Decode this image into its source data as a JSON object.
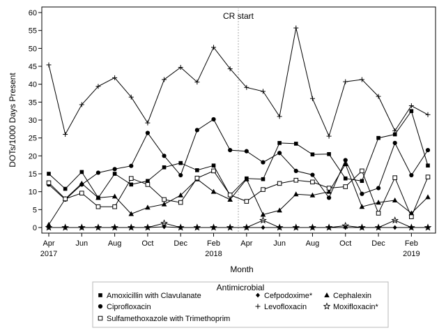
{
  "chart_data": {
    "type": "line",
    "xlabel": "Month",
    "ylabel": "DOTs/1000 Days Present",
    "ylim": [
      0,
      60
    ],
    "yticks": [
      0,
      5,
      10,
      15,
      20,
      25,
      30,
      35,
      40,
      45,
      50,
      55,
      60
    ],
    "grid": false,
    "legend_placement": "bottom",
    "x": [
      "2017-04",
      "2017-05",
      "2017-06",
      "2017-07",
      "2017-08",
      "2017-09",
      "2017-10",
      "2017-11",
      "2017-12",
      "2018-01",
      "2018-02",
      "2018-03",
      "2018-04",
      "2018-05",
      "2018-06",
      "2018-07",
      "2018-08",
      "2018-09",
      "2018-10",
      "2018-11",
      "2018-12",
      "2019-01",
      "2019-02",
      "2019-03"
    ],
    "xticks": [
      {
        "month": "2017-04",
        "label": "Apr",
        "year": "2017"
      },
      {
        "month": "2017-06",
        "label": "Jun",
        "year": ""
      },
      {
        "month": "2017-08",
        "label": "Aug",
        "year": ""
      },
      {
        "month": "2017-10",
        "label": "Oct",
        "year": ""
      },
      {
        "month": "2017-12",
        "label": "Dec",
        "year": ""
      },
      {
        "month": "2018-02",
        "label": "Feb",
        "year": "2018"
      },
      {
        "month": "2018-04",
        "label": "Apr",
        "year": ""
      },
      {
        "month": "2018-06",
        "label": "Jun",
        "year": ""
      },
      {
        "month": "2018-08",
        "label": "Aug",
        "year": ""
      },
      {
        "month": "2018-10",
        "label": "Oct",
        "year": ""
      },
      {
        "month": "2018-12",
        "label": "Dec",
        "year": ""
      },
      {
        "month": "2019-02",
        "label": "Feb",
        "year": "2019"
      }
    ],
    "annotations": [
      {
        "text": "CR start",
        "between": [
          "2018-03",
          "2018-04"
        ],
        "style": "dotted-vertical-line"
      }
    ],
    "legend_title": "Antimicrobial",
    "series": [
      {
        "name": "Amoxicillin with Clavulanate",
        "marker": "square-filled",
        "values": [
          15.0,
          10.8,
          15.5,
          8.3,
          15.0,
          12.0,
          13.0,
          16.8,
          18.0,
          16.0,
          17.3,
          9.0,
          13.7,
          13.5,
          23.6,
          23.4,
          20.4,
          20.5,
          13.7,
          13.0,
          25.0,
          26.0,
          32.5,
          17.3
        ]
      },
      {
        "name": "Cefpodoxime*",
        "marker": "diamond-filled",
        "values": [
          0.0,
          0.0,
          0.0,
          0.0,
          0.0,
          0.0,
          0.0,
          0.2,
          0.0,
          0.0,
          0.0,
          0.0,
          0.0,
          0.0,
          0.0,
          0.0,
          0.0,
          0.0,
          0.0,
          0.0,
          0.0,
          0.0,
          0.0,
          0.0
        ]
      },
      {
        "name": "Cephalexin",
        "marker": "triangle-filled",
        "values": [
          0.8,
          8.0,
          12.3,
          8.3,
          8.7,
          3.8,
          5.6,
          6.5,
          9.0,
          13.5,
          10.0,
          7.8,
          13.5,
          3.6,
          4.8,
          9.3,
          9.0,
          10.0,
          17.7,
          5.8,
          7.0,
          7.6,
          4.0,
          8.5
        ]
      },
      {
        "name": "Ciprofloxacin",
        "marker": "circle-filled",
        "values": [
          12.0,
          7.8,
          12.0,
          15.3,
          16.3,
          17.2,
          26.4,
          20.0,
          14.6,
          27.2,
          30.2,
          21.6,
          21.3,
          18.2,
          20.8,
          15.8,
          14.7,
          8.3,
          18.8,
          9.4,
          11.0,
          23.6,
          14.6,
          21.6
        ]
      },
      {
        "name": "Levofloxacin",
        "marker": "plus",
        "values": [
          45.4,
          26.0,
          34.3,
          39.4,
          41.8,
          36.4,
          29.2,
          41.3,
          44.7,
          40.6,
          50.3,
          44.3,
          39.1,
          38.0,
          31.0,
          55.7,
          36.0,
          25.5,
          40.7,
          41.3,
          36.6,
          27.0,
          34.0,
          31.5
        ]
      },
      {
        "name": "Moxifloxacin*",
        "marker": "star-open",
        "values": [
          0.0,
          0.0,
          0.0,
          0.0,
          0.0,
          0.0,
          0.0,
          1.2,
          0.0,
          0.0,
          0.0,
          0.0,
          0.0,
          2.0,
          0.0,
          0.0,
          0.0,
          0.0,
          0.5,
          0.0,
          0.0,
          2.0,
          0.0,
          0.0
        ]
      },
      {
        "name": "Sulfamethoxazole with Trimethoprim",
        "marker": "square-open",
        "values": [
          12.5,
          8.0,
          9.6,
          5.8,
          5.8,
          13.7,
          12.0,
          7.8,
          7.0,
          13.8,
          15.8,
          9.1,
          7.3,
          10.6,
          12.3,
          13.2,
          12.7,
          11.0,
          11.4,
          15.8,
          4.0,
          13.9,
          3.0,
          14.1
        ]
      }
    ],
    "legend_rows": [
      [
        "Amoxicillin with Clavulanate",
        "Cefpodoxime*",
        "Cephalexin"
      ],
      [
        "Ciprofloxacin",
        "Levofloxacin",
        "Moxifloxacin*"
      ],
      [
        "Sulfamethoxazole with Trimethoprim"
      ]
    ]
  }
}
